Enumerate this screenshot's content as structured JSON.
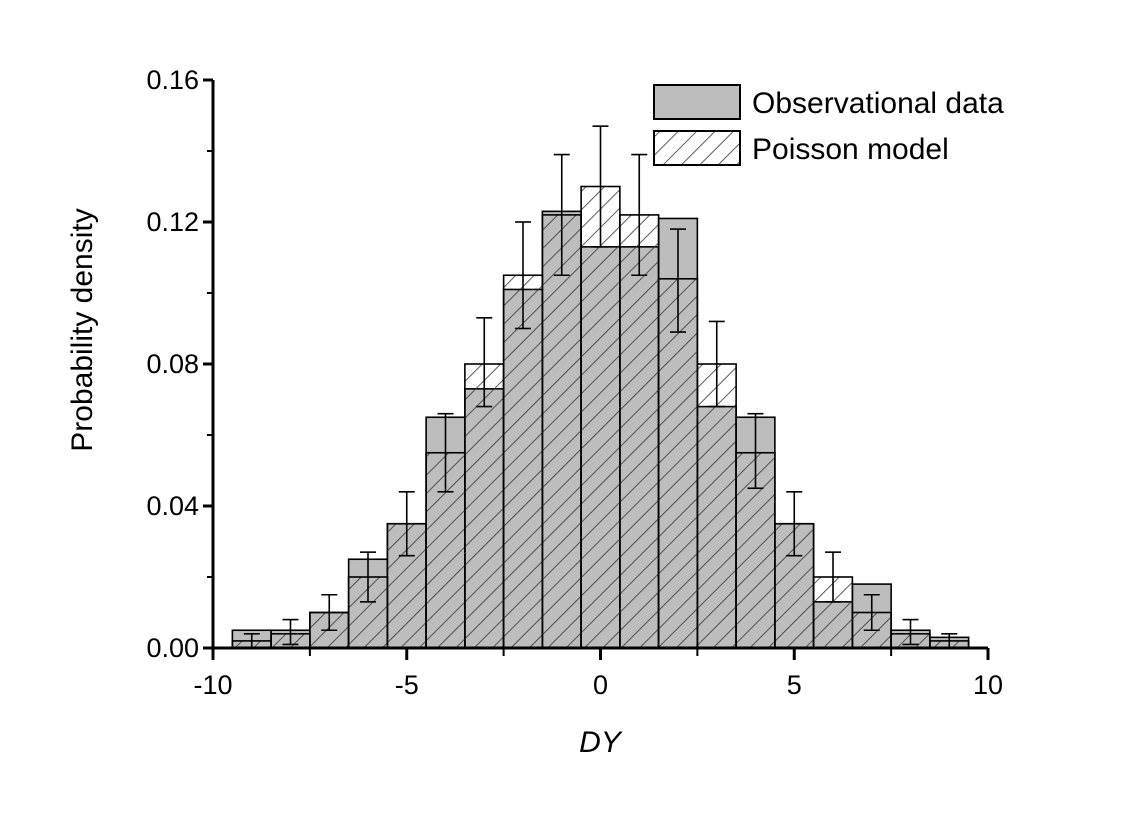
{
  "chart_data": {
    "type": "bar",
    "title": "",
    "xlabel": "DY",
    "ylabel": "Probability density",
    "xlim": [
      -10,
      10
    ],
    "ylim": [
      0,
      0.16
    ],
    "xticks": [
      "-10",
      "-5",
      "0",
      "5",
      "10"
    ],
    "yticks": [
      "0.00",
      "0.04",
      "0.08",
      "0.12",
      "0.16"
    ],
    "grid": false,
    "legend_position": "top-right",
    "bin_width": 1,
    "x": [
      -9,
      -8,
      -7,
      -6,
      -5,
      -4,
      -3,
      -2,
      -1,
      0,
      1,
      2,
      3,
      4,
      5,
      6,
      7,
      8,
      9
    ],
    "series": [
      {
        "name": "Observational data",
        "style": "gray-fill",
        "values": [
          0.005,
          0.005,
          0.01,
          0.025,
          0.035,
          0.065,
          0.073,
          0.101,
          0.123,
          0.113,
          0.113,
          0.121,
          0.068,
          0.065,
          0.035,
          0.013,
          0.018,
          0.005,
          0.003
        ]
      },
      {
        "name": "Poisson model",
        "style": "hatched",
        "values": [
          0.002,
          0.004,
          0.01,
          0.02,
          0.035,
          0.055,
          0.08,
          0.105,
          0.122,
          0.13,
          0.122,
          0.104,
          0.08,
          0.055,
          0.035,
          0.02,
          0.01,
          0.004,
          0.002
        ],
        "error_high": [
          0.004,
          0.008,
          0.015,
          0.027,
          0.044,
          0.066,
          0.093,
          0.12,
          0.139,
          0.147,
          0.139,
          0.118,
          0.092,
          0.066,
          0.044,
          0.027,
          0.015,
          0.008,
          0.004
        ],
        "error_low": [
          0.0,
          0.001,
          0.005,
          0.013,
          0.026,
          0.044,
          0.068,
          0.09,
          0.105,
          0.113,
          0.105,
          0.089,
          0.068,
          0.045,
          0.026,
          0.013,
          0.005,
          0.001,
          0.0
        ]
      }
    ]
  },
  "colors": {
    "observed_fill": "#bdbdbd",
    "hatch_line": "#333333",
    "axis": "#000000"
  }
}
